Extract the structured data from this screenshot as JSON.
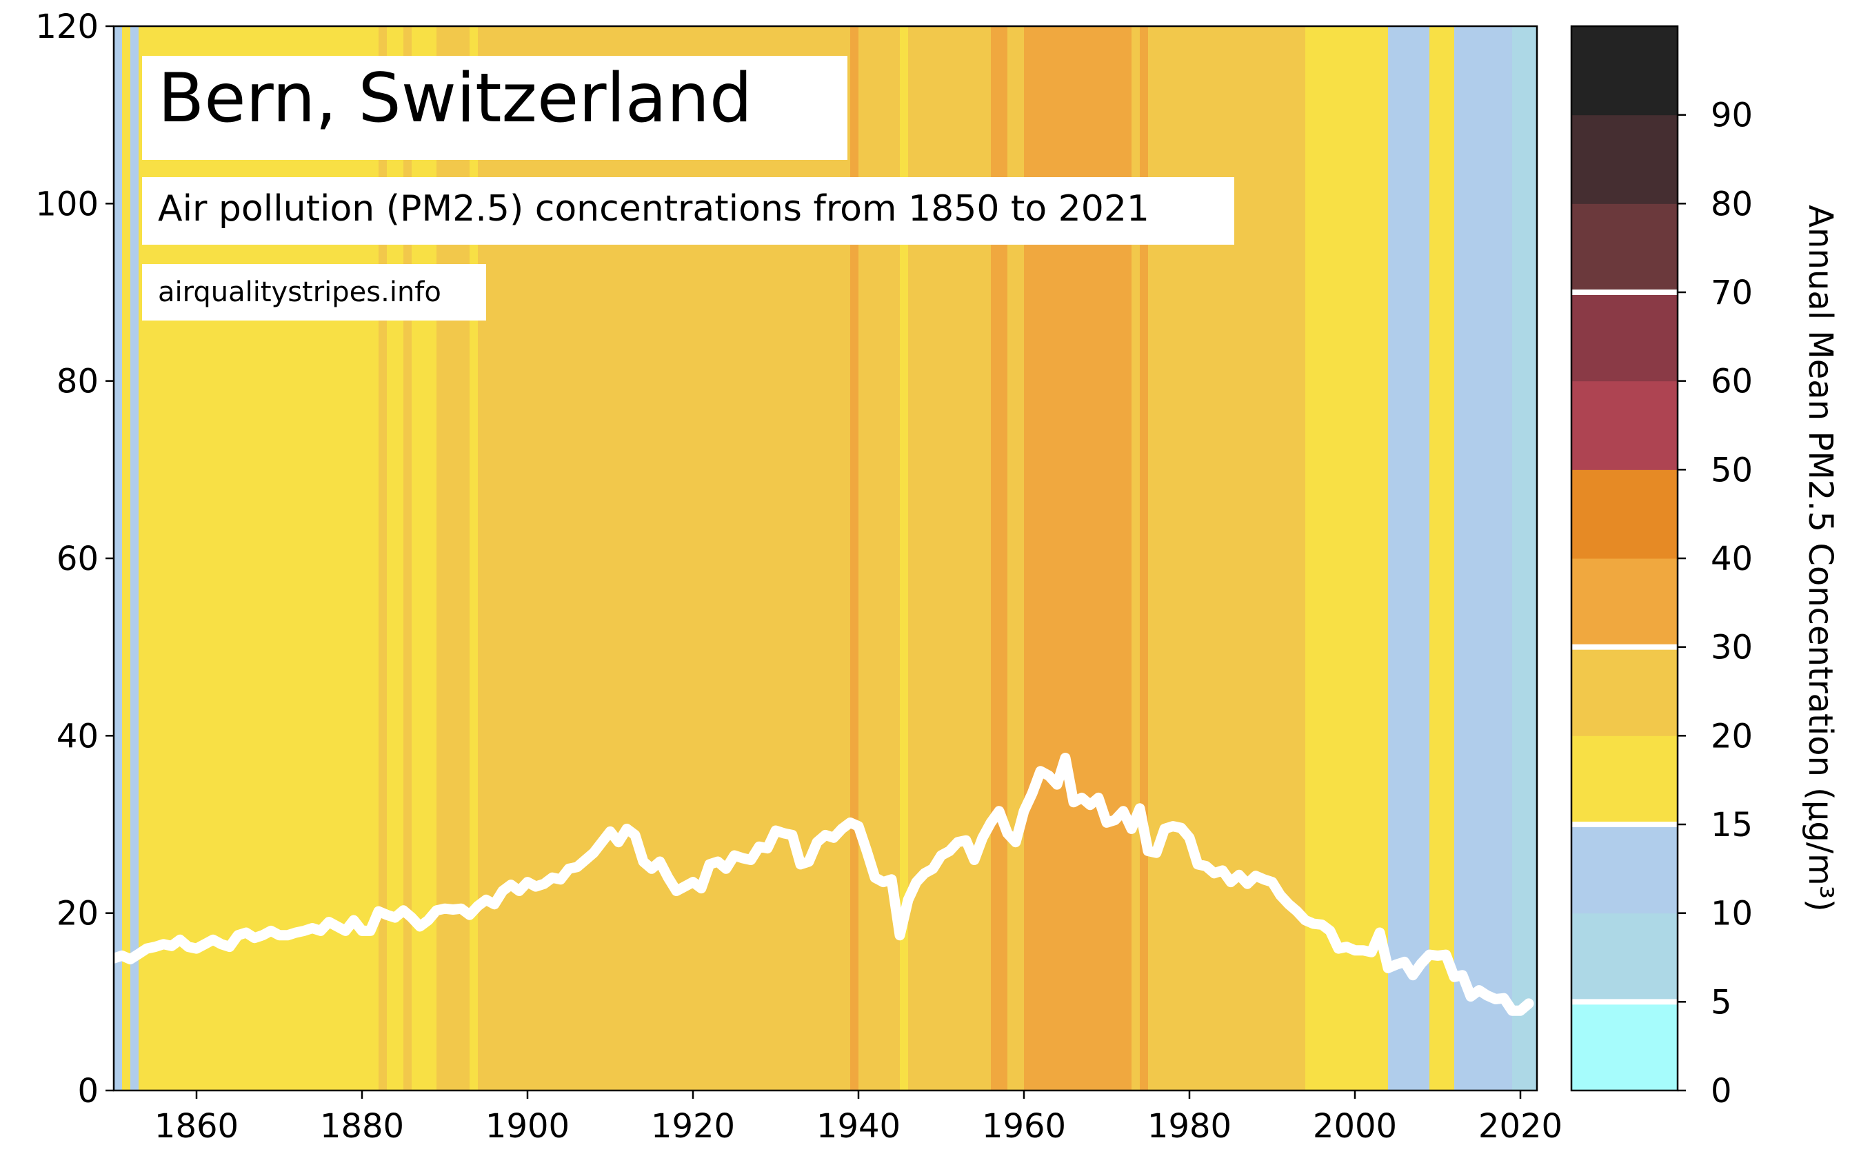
{
  "chart_data": {
    "type": "line",
    "title": "Bern, Switzerland",
    "subtitle": "Air pollution (PM2.5) concentrations from 1850 to 2021",
    "source": "airqualitystripes.info",
    "x": [
      1850,
      1851,
      1852,
      1853,
      1854,
      1855,
      1856,
      1857,
      1858,
      1859,
      1860,
      1861,
      1862,
      1863,
      1864,
      1865,
      1866,
      1867,
      1868,
      1869,
      1870,
      1871,
      1872,
      1873,
      1874,
      1875,
      1876,
      1877,
      1878,
      1879,
      1880,
      1881,
      1882,
      1883,
      1884,
      1885,
      1886,
      1887,
      1888,
      1889,
      1890,
      1891,
      1892,
      1893,
      1894,
      1895,
      1896,
      1897,
      1898,
      1899,
      1900,
      1901,
      1902,
      1903,
      1904,
      1905,
      1906,
      1907,
      1908,
      1909,
      1910,
      1911,
      1912,
      1913,
      1914,
      1915,
      1916,
      1917,
      1918,
      1919,
      1920,
      1921,
      1922,
      1923,
      1924,
      1925,
      1926,
      1927,
      1928,
      1929,
      1930,
      1931,
      1932,
      1933,
      1934,
      1935,
      1936,
      1937,
      1938,
      1939,
      1940,
      1941,
      1942,
      1943,
      1944,
      1945,
      1946,
      1947,
      1948,
      1949,
      1950,
      1951,
      1952,
      1953,
      1954,
      1955,
      1956,
      1957,
      1958,
      1959,
      1960,
      1961,
      1962,
      1963,
      1964,
      1965,
      1966,
      1967,
      1968,
      1969,
      1970,
      1971,
      1972,
      1973,
      1974,
      1975,
      1976,
      1977,
      1978,
      1979,
      1980,
      1981,
      1982,
      1983,
      1984,
      1985,
      1986,
      1987,
      1988,
      1989,
      1990,
      1991,
      1992,
      1993,
      1994,
      1995,
      1996,
      1997,
      1998,
      1999,
      2000,
      2001,
      2002,
      2003,
      2004,
      2005,
      2006,
      2007,
      2008,
      2009,
      2010,
      2011,
      2012,
      2013,
      2014,
      2015,
      2016,
      2017,
      2018,
      2019,
      2020,
      2021
    ],
    "series": [
      {
        "color": "#ffffff",
        "values": [
          14.9,
          15.2,
          14.8,
          15.4,
          16,
          16.2,
          16.5,
          16.3,
          17,
          16.2,
          16,
          16.5,
          17,
          16.5,
          16.2,
          17.5,
          17.8,
          17.2,
          17.5,
          18,
          17.5,
          17.5,
          17.8,
          18,
          18.3,
          18,
          19,
          18.5,
          18,
          19.2,
          18,
          18,
          20.2,
          19.8,
          19.5,
          20.3,
          19.5,
          18.5,
          19.2,
          20.3,
          20.5,
          20.4,
          20.5,
          19.8,
          20.8,
          21.5,
          21,
          22.5,
          23.2,
          22.5,
          23.5,
          23,
          23.3,
          24,
          23.8,
          25,
          25.2,
          26,
          26.8,
          28,
          29.2,
          28,
          29.5,
          28.8,
          25.8,
          25,
          25.8,
          24,
          22.5,
          23,
          23.5,
          22.8,
          25.5,
          25.8,
          25,
          26.5,
          26.2,
          26,
          27.5,
          27.3,
          29.3,
          29,
          28.8,
          25.5,
          25.8,
          28,
          28.8,
          28.5,
          29.5,
          30.2,
          29.8,
          27,
          24,
          23.5,
          23.8,
          17.5,
          21.5,
          23.5,
          24.5,
          25,
          26.5,
          27,
          28,
          28.2,
          26,
          28.5,
          30.2,
          31.5,
          29,
          28,
          31.5,
          33.5,
          36,
          35.5,
          34.5,
          37.5,
          32.5,
          33,
          32.2,
          33,
          30.2,
          30.5,
          31.5,
          29.5,
          31.8,
          27,
          26.8,
          29.5,
          29.8,
          29.6,
          28.5,
          25.5,
          25.3,
          24.5,
          24.8,
          23.5,
          24.3,
          23.3,
          24.2,
          23.8,
          23.5,
          22,
          21,
          20.2,
          19.2,
          18.8,
          18.7,
          18,
          16,
          16.2,
          15.8,
          15.8,
          15.6,
          17.8,
          13.8,
          14.2,
          14.5,
          13,
          14.3,
          15.3,
          15.2,
          15.3,
          12.8,
          13,
          10.6,
          11.3,
          10.7,
          10.3,
          10.4,
          9,
          9,
          9.8
        ]
      }
    ],
    "xlim": [
      1850,
      2022
    ],
    "xticks": [
      1860,
      1880,
      1900,
      1920,
      1940,
      1960,
      1980,
      2000,
      2020
    ],
    "ylim": [
      0,
      120
    ],
    "yticks": [
      0,
      20,
      40,
      60,
      80,
      100,
      120
    ],
    "colorbar": {
      "label": "Annual Mean PM2.5 Concentration (µg/m³)",
      "boundaries": [
        0,
        5,
        10,
        15,
        20,
        30,
        40,
        50,
        60,
        70,
        80,
        90,
        100
      ],
      "colors": [
        "#a6fcfc",
        "#add8e6",
        "#b0cdeb",
        "#f8e045",
        "#f2c84b",
        "#f0a83f",
        "#e68a25",
        "#ae4452",
        "#8a3a46",
        "#6b393c",
        "#452e31",
        "#232323"
      ],
      "ticks": [
        0,
        5,
        10,
        15,
        20,
        30,
        40,
        50,
        60,
        70,
        80,
        90
      ],
      "highlight": [
        5,
        15,
        30,
        70
      ]
    }
  }
}
